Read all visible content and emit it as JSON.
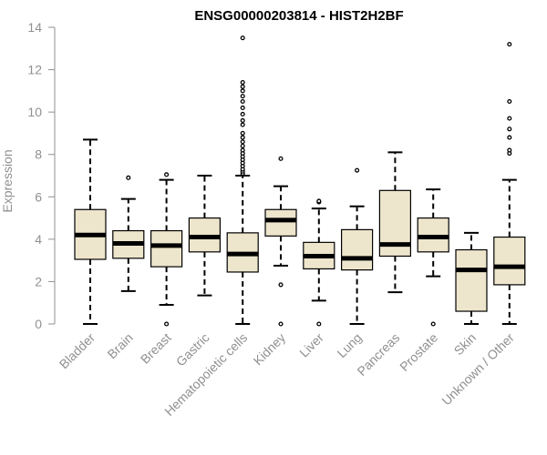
{
  "chart_data": {
    "type": "boxplot",
    "title": "ENSG00000203814 - HIST2H2BF",
    "xlabel": "",
    "ylabel": "Expression",
    "ylim": [
      0,
      14
    ],
    "yticks": [
      "0",
      "2",
      "4",
      "6",
      "8",
      "10",
      "12",
      "14"
    ],
    "colors": {
      "box_fill": "#ede5cc",
      "stroke": "#000000",
      "axis": "#909090"
    },
    "categories": [
      "Bladder",
      "Brain",
      "Breast",
      "Gastric",
      "Hematopoietic cells",
      "Kidney",
      "Liver",
      "Lung",
      "Pancreas",
      "Prostate",
      "Skin",
      "Unknown / Other"
    ],
    "boxes": [
      {
        "name": "Bladder",
        "min": 0.0,
        "q1": 3.05,
        "median": 4.2,
        "q3": 5.4,
        "max": 8.7,
        "outliers": []
      },
      {
        "name": "Brain",
        "min": 1.55,
        "q1": 3.1,
        "median": 3.8,
        "q3": 4.4,
        "max": 5.9,
        "outliers": [
          6.9
        ]
      },
      {
        "name": "Breast",
        "min": 0.9,
        "q1": 2.7,
        "median": 3.7,
        "q3": 4.4,
        "max": 6.8,
        "outliers": [
          7.05,
          0.0
        ]
      },
      {
        "name": "Gastric",
        "min": 1.35,
        "q1": 3.4,
        "median": 4.1,
        "q3": 5.0,
        "max": 7.0,
        "outliers": []
      },
      {
        "name": "Hematopoietic cells",
        "min": 0.0,
        "q1": 2.45,
        "median": 3.3,
        "q3": 4.3,
        "max": 7.0,
        "outliers": [
          7.1,
          7.2,
          7.3,
          7.45,
          7.6,
          7.75,
          7.9,
          8.05,
          8.2,
          8.4,
          8.6,
          8.8,
          9.0,
          9.4,
          9.6,
          9.9,
          10.2,
          10.5,
          10.75,
          11.0,
          11.2,
          11.4,
          13.5
        ]
      },
      {
        "name": "Kidney",
        "min": 2.75,
        "q1": 4.15,
        "median": 4.9,
        "q3": 5.4,
        "max": 6.5,
        "outliers": [
          7.8,
          1.85,
          0.0
        ]
      },
      {
        "name": "Liver",
        "min": 1.1,
        "q1": 2.6,
        "median": 3.2,
        "q3": 3.85,
        "max": 5.45,
        "outliers": [
          5.75,
          5.8,
          0.0
        ]
      },
      {
        "name": "Lung",
        "min": 0.0,
        "q1": 2.55,
        "median": 3.1,
        "q3": 4.45,
        "max": 5.55,
        "outliers": [
          7.25
        ]
      },
      {
        "name": "Pancreas",
        "min": 1.5,
        "q1": 3.2,
        "median": 3.75,
        "q3": 6.3,
        "max": 8.1,
        "outliers": []
      },
      {
        "name": "Prostate",
        "min": 2.25,
        "q1": 3.4,
        "median": 4.1,
        "q3": 5.0,
        "max": 6.35,
        "outliers": [
          0.0
        ]
      },
      {
        "name": "Skin",
        "min": 0.0,
        "q1": 0.6,
        "median": 2.55,
        "q3": 3.5,
        "max": 4.3,
        "outliers": []
      },
      {
        "name": "Unknown / Other",
        "min": 0.0,
        "q1": 1.85,
        "median": 2.7,
        "q3": 4.1,
        "max": 6.8,
        "outliers": [
          8.05,
          8.2,
          8.8,
          9.2,
          9.7,
          10.5,
          13.2
        ]
      }
    ]
  }
}
